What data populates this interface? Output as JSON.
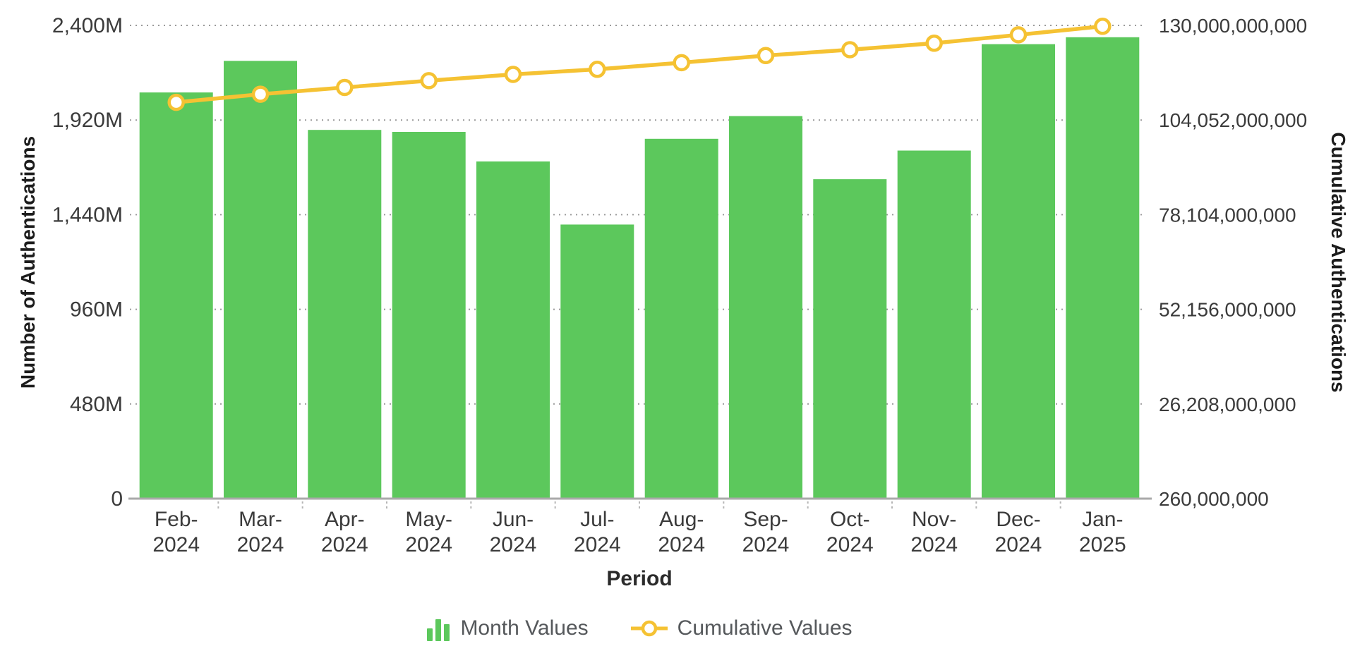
{
  "chart_data": {
    "type": "bar+line",
    "title": "",
    "categories": [
      "Feb-2024",
      "Mar-2024",
      "Apr-2024",
      "May-2024",
      "Jun-2024",
      "Jul-2024",
      "Aug-2024",
      "Sep-2024",
      "Oct-2024",
      "Nov-2024",
      "Dec-2024",
      "Jan-2025"
    ],
    "series": [
      {
        "name": "Month Values",
        "type": "bar",
        "axis": "left",
        "color": "#5CC85C",
        "values_millions": [
          2060,
          2220,
          1870,
          1860,
          1710,
          1390,
          1825,
          1940,
          1620,
          1765,
          2305,
          2340
        ]
      },
      {
        "name": "Cumulative Values",
        "type": "line",
        "axis": "right",
        "color": "#F5C233",
        "marker_fill": "#FFFFFF",
        "values": [
          108900000000,
          111120000000,
          112990000000,
          114850000000,
          116560000000,
          117950000000,
          119775000000,
          121715000000,
          123335000000,
          125100000000,
          127405000000,
          129745000000
        ]
      }
    ],
    "left_axis": {
      "label": "Number of Authentications",
      "ticks": [
        "0",
        "480M",
        "960M",
        "1,440M",
        "1,920M",
        "2,400M"
      ],
      "max_millions": 2400
    },
    "right_axis": {
      "label": "Cumulative Authentications",
      "ticks": [
        "260,000,000",
        "26,208,000,000",
        "52,156,000,000",
        "78,104,000,000",
        "104,052,000,000",
        "130,000,000,000"
      ],
      "range": [
        260000000,
        130000000000
      ]
    },
    "xlabel": "Period",
    "legend": [
      {
        "label": "Month Values",
        "color": "#5CC85C",
        "shape": "bars"
      },
      {
        "label": "Cumulative Values",
        "color": "#F5C233",
        "shape": "line-circle"
      }
    ],
    "grid": {
      "horizontal": "dotted",
      "vertical": "none"
    }
  },
  "colors": {
    "background": "#FFFFFF",
    "grid": "#9A9A9A",
    "axis_line": "#AAAAAA",
    "tick_text": "#3B3B3B",
    "legend_text": "#55585B"
  }
}
